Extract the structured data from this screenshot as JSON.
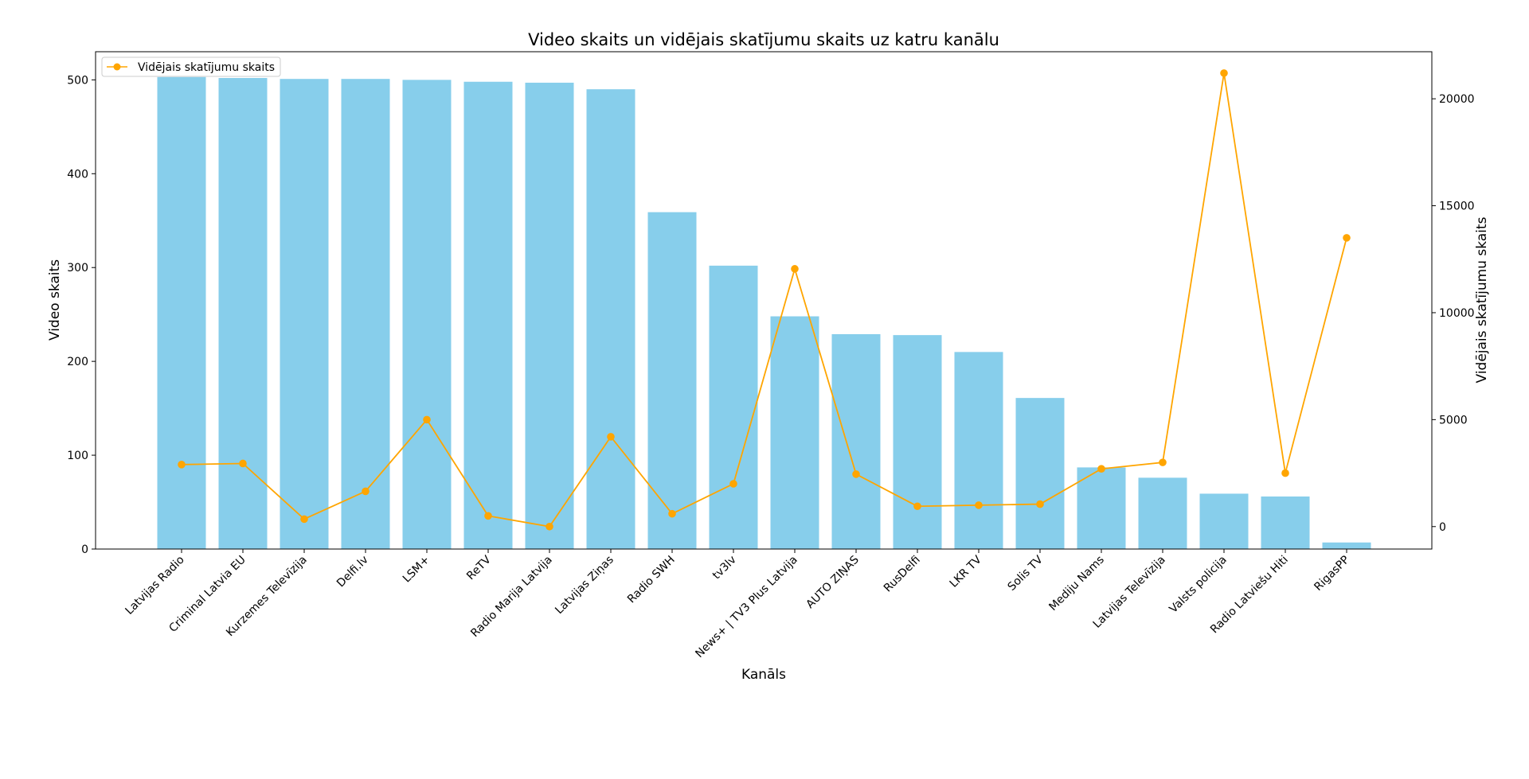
{
  "chart_data": {
    "type": "bar",
    "title": "Video skaits un vidējais skatījumu skaits uz katru kanālu",
    "xlabel": "Kanāls",
    "ylabel": "Video skaits",
    "ylabel_right": "Vidējais skatījumu skaits",
    "ylim": [
      0,
      530
    ],
    "ylim_right": [
      -1050,
      22200
    ],
    "yticks": [
      "0",
      "100",
      "200",
      "300",
      "400",
      "500"
    ],
    "yticks_right": [
      "0",
      "5000",
      "10000",
      "15000",
      "20000"
    ],
    "grid": false,
    "legend": {
      "placement": "top-left",
      "entries": [
        "Vidējais skatījumu skaits"
      ]
    },
    "categories": [
      "Latvijas Radio",
      "Criminal Latvia EU",
      "Kurzemes Televīzija",
      "Delfi.lv",
      "LSM+",
      "ReTV",
      "Radio Marija Latvija",
      "Latvijas Ziņas",
      "Radio SWH",
      "tv3lv",
      "News+ | TV3 Plus Latvija",
      "AUTO ZIŅAS",
      "RusDelfi",
      "LKR TV",
      "Solis TV",
      "Mediju Nams",
      "Latvijas Televīzija",
      "Valsts policija",
      "Radio Latviešu Hiti",
      "RigasPP"
    ],
    "series": [
      {
        "kind": "bar",
        "axis": "left",
        "color": "#87ceeb",
        "values": [
          503,
          502,
          501,
          501,
          500,
          498,
          497,
          490,
          359,
          302,
          248,
          229,
          228,
          210,
          161,
          87,
          76,
          59,
          56,
          7
        ]
      },
      {
        "kind": "line",
        "axis": "right",
        "name": "Vidējais skatījumu skaits",
        "color": "#ffa500",
        "marker": "circle",
        "values": [
          2900,
          2950,
          350,
          1650,
          5000,
          500,
          0,
          4200,
          600,
          2000,
          12050,
          2450,
          950,
          1000,
          1050,
          2700,
          3000,
          21200,
          2500,
          13500
        ]
      }
    ]
  }
}
